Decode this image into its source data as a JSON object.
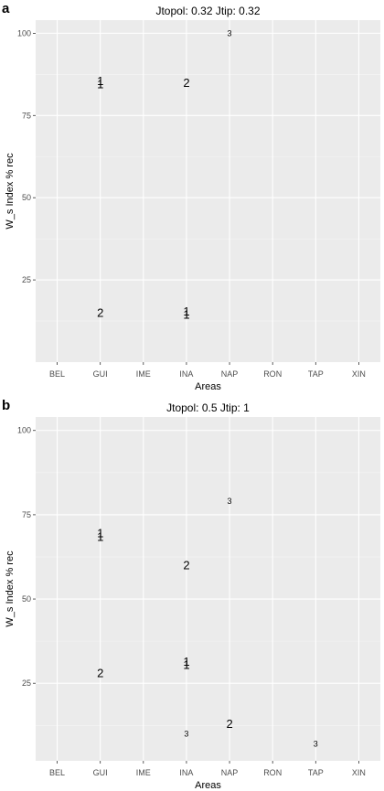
{
  "chart_data": [
    {
      "type": "scatter",
      "panel": "a",
      "title": "Jtopol: 0.32 Jtip: 0.32",
      "xlabel": "Areas",
      "ylabel": "W_s Index % rec",
      "categories": [
        "BEL",
        "GUI",
        "IME",
        "INA",
        "NAP",
        "RON",
        "TAP",
        "XIN"
      ],
      "ylim": [
        0,
        104
      ],
      "yticks": [
        "25",
        "50",
        "75",
        "100"
      ],
      "grid": true,
      "points": [
        {
          "x": "GUI",
          "y": 85.5,
          "label": "1",
          "size": 13
        },
        {
          "x": "GUI",
          "y": 84.5,
          "label": "1",
          "size": 13
        },
        {
          "x": "INA",
          "y": 85,
          "label": "2",
          "size": 13
        },
        {
          "x": "NAP",
          "y": 100,
          "label": "3",
          "size": 9
        },
        {
          "x": "GUI",
          "y": 15,
          "label": "2",
          "size": 13
        },
        {
          "x": "INA",
          "y": 15.5,
          "label": "1",
          "size": 13
        },
        {
          "x": "INA",
          "y": 14.5,
          "label": "1",
          "size": 13
        }
      ]
    },
    {
      "type": "scatter",
      "panel": "b",
      "title": "Jtopol: 0.5 Jtip: 1",
      "xlabel": "Areas",
      "ylabel": "W_s Index % rec",
      "categories": [
        "BEL",
        "GUI",
        "IME",
        "INA",
        "NAP",
        "RON",
        "TAP",
        "XIN"
      ],
      "ylim": [
        2,
        104
      ],
      "yticks": [
        "25",
        "50",
        "75",
        "100"
      ],
      "grid": true,
      "points": [
        {
          "x": "GUI",
          "y": 69.5,
          "label": "1",
          "size": 13
        },
        {
          "x": "GUI",
          "y": 68.5,
          "label": "1",
          "size": 13
        },
        {
          "x": "INA",
          "y": 60,
          "label": "2",
          "size": 13
        },
        {
          "x": "NAP",
          "y": 79,
          "label": "3",
          "size": 9
        },
        {
          "x": "GUI",
          "y": 28,
          "label": "2",
          "size": 13
        },
        {
          "x": "INA",
          "y": 31.5,
          "label": "1",
          "size": 13
        },
        {
          "x": "INA",
          "y": 30.5,
          "label": "1",
          "size": 13
        },
        {
          "x": "INA",
          "y": 10,
          "label": "3",
          "size": 9
        },
        {
          "x": "NAP",
          "y": 13,
          "label": "2",
          "size": 13
        },
        {
          "x": "TAP",
          "y": 7,
          "label": "3",
          "size": 9
        }
      ]
    }
  ]
}
